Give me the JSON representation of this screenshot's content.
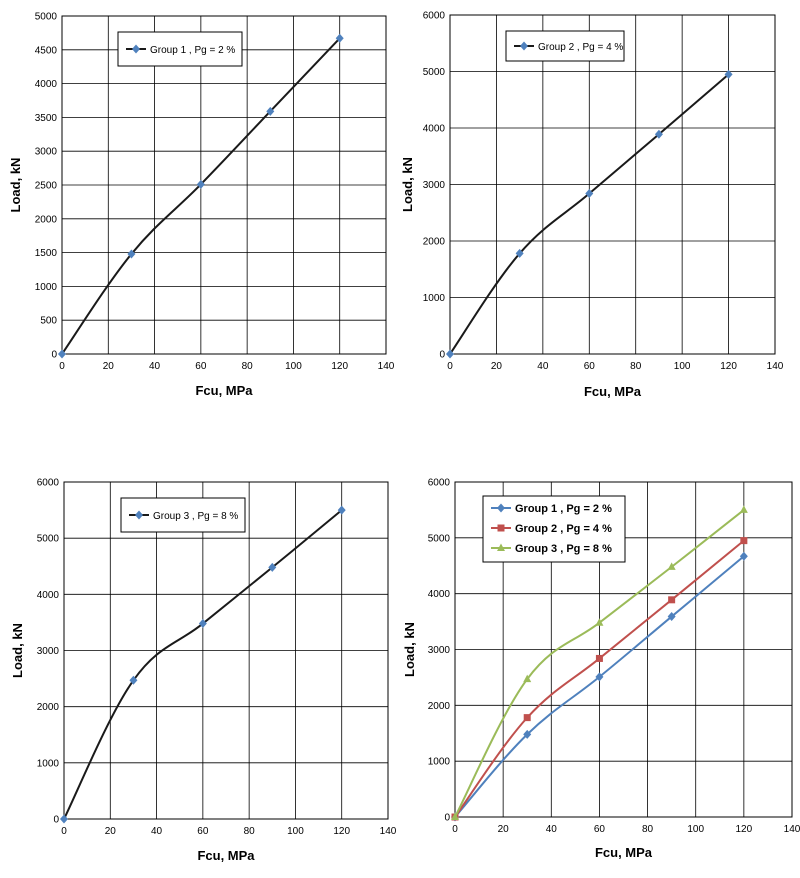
{
  "chart_data": [
    {
      "type": "line",
      "xlabel": "Fcu, MPa",
      "ylabel": "Load, kN",
      "xlim": [
        0,
        140
      ],
      "ylim": [
        0,
        5000
      ],
      "xticks": [
        0,
        20,
        40,
        60,
        80,
        100,
        120,
        140
      ],
      "yticks": [
        0,
        500,
        1000,
        1500,
        2000,
        2500,
        3000,
        3500,
        4000,
        4500,
        5000
      ],
      "grid": true,
      "legend_position": "top-left",
      "series": [
        {
          "name": "Group 1 , Pg = 2 %",
          "color": "#4F81BD",
          "marker": "diamond",
          "x": [
            0,
            30,
            60,
            90,
            120
          ],
          "y": [
            0,
            1480,
            2510,
            3590,
            4670
          ]
        }
      ]
    },
    {
      "type": "line",
      "xlabel": "Fcu, MPa",
      "ylabel": "Load, kN",
      "xlim": [
        0,
        140
      ],
      "ylim": [
        0,
        6000
      ],
      "xticks": [
        0,
        20,
        40,
        60,
        80,
        100,
        120,
        140
      ],
      "yticks": [
        0,
        1000,
        2000,
        3000,
        4000,
        5000,
        6000
      ],
      "grid": true,
      "legend_position": "top-left",
      "series": [
        {
          "name": "Group 2 , Pg = 4 %",
          "color": "#4F81BD",
          "marker": "diamond",
          "x": [
            0,
            30,
            60,
            90,
            120
          ],
          "y": [
            0,
            1780,
            2840,
            3890,
            4950
          ]
        }
      ]
    },
    {
      "type": "line",
      "xlabel": "Fcu, MPa",
      "ylabel": "Load, kN",
      "xlim": [
        0,
        140
      ],
      "ylim": [
        0,
        6000
      ],
      "xticks": [
        0,
        20,
        40,
        60,
        80,
        100,
        120,
        140
      ],
      "yticks": [
        0,
        1000,
        2000,
        3000,
        4000,
        5000,
        6000
      ],
      "grid": true,
      "legend_position": "top-left",
      "series": [
        {
          "name": "Group 3 , Pg = 8 %",
          "color": "#4F81BD",
          "marker": "diamond",
          "x": [
            0,
            30,
            60,
            90,
            120
          ],
          "y": [
            0,
            2470,
            3480,
            4480,
            5500
          ]
        }
      ]
    },
    {
      "type": "line",
      "xlabel": "Fcu, MPa",
      "ylabel": "Load, kN",
      "xlim": [
        0,
        140
      ],
      "ylim": [
        0,
        6000
      ],
      "xticks": [
        0,
        20,
        40,
        60,
        80,
        100,
        120,
        140
      ],
      "yticks": [
        0,
        1000,
        2000,
        3000,
        4000,
        5000,
        6000
      ],
      "grid": true,
      "legend_position": "top-left",
      "series": [
        {
          "name": "Group 1 , Pg = 2 %",
          "color": "#4F81BD",
          "marker": "diamond",
          "x": [
            0,
            30,
            60,
            90,
            120
          ],
          "y": [
            0,
            1480,
            2510,
            3590,
            4670
          ]
        },
        {
          "name": "Group 2 , Pg = 4 %",
          "color": "#C0504D",
          "marker": "square",
          "x": [
            0,
            30,
            60,
            90,
            120
          ],
          "y": [
            0,
            1780,
            2840,
            3890,
            4950
          ]
        },
        {
          "name": "Group 3 , Pg = 8 %",
          "color": "#9BBB59",
          "marker": "triangle",
          "x": [
            0,
            30,
            60,
            90,
            120
          ],
          "y": [
            0,
            2470,
            3480,
            4480,
            5500
          ]
        }
      ]
    }
  ]
}
